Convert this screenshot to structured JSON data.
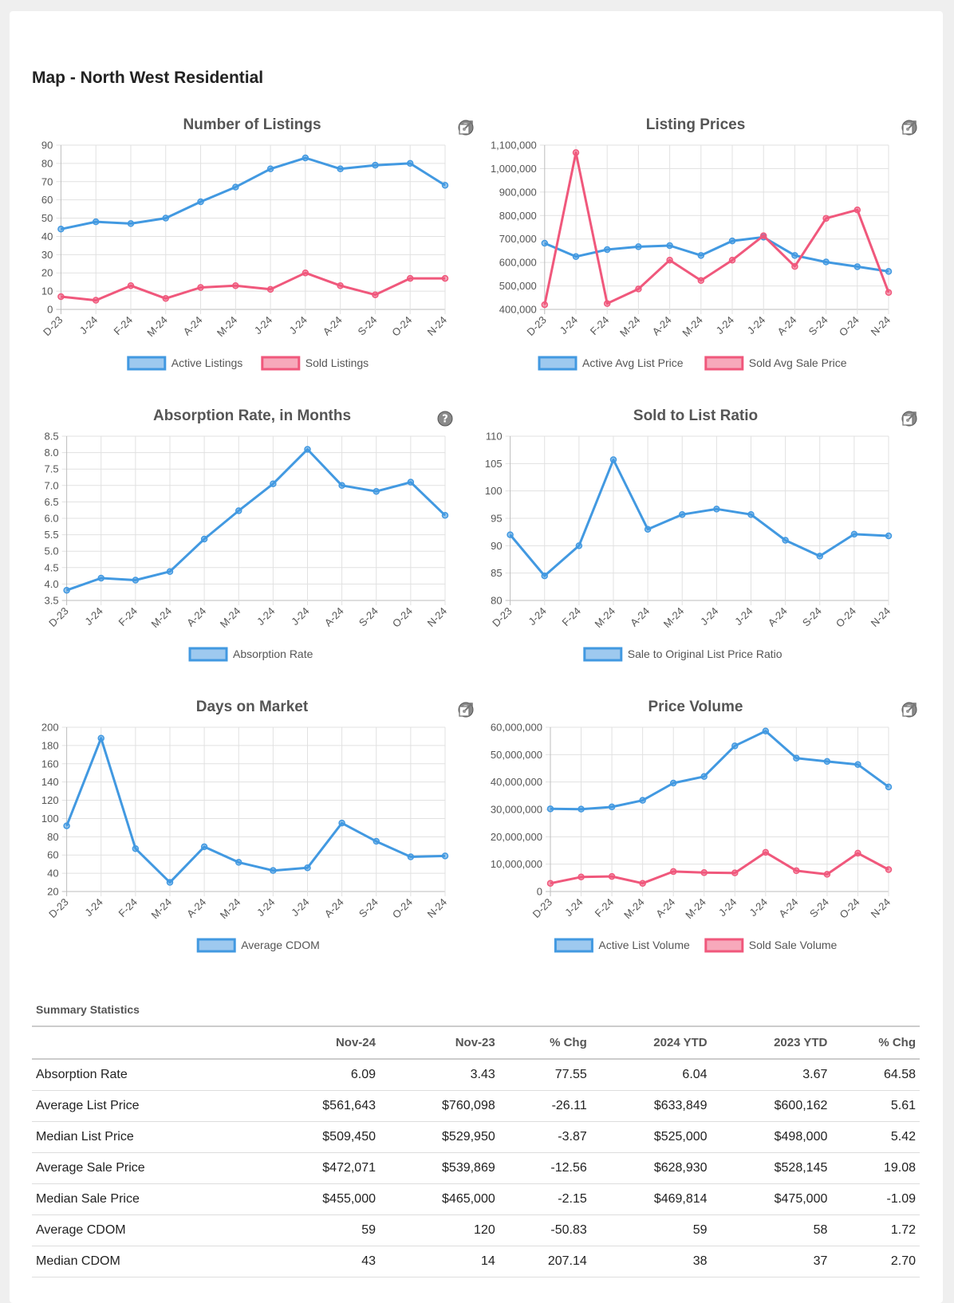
{
  "page": {
    "title": "Map - North West Residential"
  },
  "colors": {
    "blue": "#4299e1",
    "pink": "#f0587c",
    "grid": "#e1e1e1",
    "axis": "#bdbdbd"
  },
  "icons": {
    "help": "help-icon",
    "settings": "settings-icon"
  },
  "chart_data": [
    {
      "type": "line",
      "title": "Number of Listings",
      "categories": [
        "D-23",
        "J-24",
        "F-24",
        "M-24",
        "A-24",
        "M-24",
        "J-24",
        "J-24",
        "A-24",
        "S-24",
        "O-24",
        "N-24"
      ],
      "yticks": [
        "0",
        "10",
        "20",
        "30",
        "40",
        "50",
        "60",
        "70",
        "80",
        "90"
      ],
      "ylim": [
        0,
        90
      ],
      "series": [
        {
          "name": "Active Listings",
          "color": "#4299e1",
          "values": [
            44,
            48,
            47,
            50,
            59,
            67,
            77,
            83,
            77,
            79,
            80,
            68
          ]
        },
        {
          "name": "Sold Listings",
          "color": "#f0587c",
          "values": [
            7,
            5,
            13,
            6,
            12,
            13,
            11,
            20,
            13,
            8,
            17,
            17
          ]
        }
      ]
    },
    {
      "type": "line",
      "title": "Listing Prices",
      "categories": [
        "D-23",
        "J-24",
        "F-24",
        "M-24",
        "A-24",
        "M-24",
        "J-24",
        "J-24",
        "A-24",
        "S-24",
        "O-24",
        "N-24"
      ],
      "yticks": [
        "400,000",
        "500,000",
        "600,000",
        "700,000",
        "800,000",
        "900,000",
        "1,000,000",
        "1,100,000"
      ],
      "ylim": [
        400000,
        1100000
      ],
      "series": [
        {
          "name": "Active Avg List Price",
          "color": "#4299e1",
          "values": [
            682000,
            625000,
            655000,
            667000,
            672000,
            630000,
            692000,
            708000,
            630000,
            602000,
            582000,
            561643
          ]
        },
        {
          "name": "Sold Avg Sale Price",
          "color": "#f0587c",
          "values": [
            420000,
            1068000,
            425000,
            487000,
            610000,
            523000,
            610000,
            714000,
            583000,
            788000,
            824000,
            472071
          ]
        }
      ]
    },
    {
      "type": "line",
      "title": "Absorption Rate, in Months",
      "categories": [
        "D-23",
        "J-24",
        "F-24",
        "M-24",
        "A-24",
        "M-24",
        "J-24",
        "J-24",
        "A-24",
        "S-24",
        "O-24",
        "N-24"
      ],
      "yticks": [
        "3.5",
        "4.0",
        "4.5",
        "5.0",
        "5.5",
        "6.0",
        "6.5",
        "7.0",
        "7.5",
        "8.0",
        "8.5"
      ],
      "ylim": [
        3.5,
        8.5
      ],
      "series": [
        {
          "name": "Absorption Rate",
          "color": "#4299e1",
          "values": [
            3.81,
            4.18,
            4.12,
            4.38,
            5.37,
            6.23,
            7.05,
            8.1,
            7.0,
            6.82,
            7.1,
            6.09
          ]
        }
      ]
    },
    {
      "type": "line",
      "title": "Sold to List Ratio",
      "categories": [
        "D-23",
        "J-24",
        "F-24",
        "M-24",
        "A-24",
        "M-24",
        "J-24",
        "J-24",
        "A-24",
        "S-24",
        "O-24",
        "N-24"
      ],
      "yticks": [
        "80",
        "85",
        "90",
        "95",
        "100",
        "105",
        "110"
      ],
      "ylim": [
        80,
        110
      ],
      "series": [
        {
          "name": "Sale to Original List Price Ratio",
          "color": "#4299e1",
          "values": [
            92.0,
            84.5,
            90.0,
            105.7,
            93.0,
            95.7,
            96.7,
            95.7,
            91.0,
            88.1,
            92.1,
            91.8
          ]
        }
      ]
    },
    {
      "type": "line",
      "title": "Days on Market",
      "categories": [
        "D-23",
        "J-24",
        "F-24",
        "M-24",
        "A-24",
        "M-24",
        "J-24",
        "J-24",
        "A-24",
        "S-24",
        "O-24",
        "N-24"
      ],
      "yticks": [
        "20",
        "40",
        "60",
        "80",
        "100",
        "120",
        "140",
        "160",
        "180",
        "200"
      ],
      "ylim": [
        20,
        200
      ],
      "series": [
        {
          "name": "Average CDOM",
          "color": "#4299e1",
          "values": [
            92,
            188,
            67,
            30,
            69,
            52,
            43,
            46,
            95,
            75,
            58,
            59
          ]
        }
      ]
    },
    {
      "type": "line",
      "title": "Price Volume",
      "categories": [
        "D-23",
        "J-24",
        "F-24",
        "M-24",
        "A-24",
        "M-24",
        "J-24",
        "J-24",
        "A-24",
        "S-24",
        "O-24",
        "N-24"
      ],
      "yticks": [
        "0",
        "10,000,000",
        "20,000,000",
        "30,000,000",
        "40,000,000",
        "50,000,000",
        "60,000,000"
      ],
      "ylim": [
        0,
        60000000
      ],
      "series": [
        {
          "name": "Active List Volume",
          "color": "#4299e1",
          "values": [
            30200000,
            30100000,
            30900000,
            33300000,
            39600000,
            42000000,
            53200000,
            58600000,
            48700000,
            47500000,
            46400000,
            38200000
          ]
        },
        {
          "name": "Sold Sale Volume",
          "color": "#f0587c",
          "values": [
            3000000,
            5300000,
            5500000,
            3000000,
            7300000,
            6900000,
            6800000,
            14300000,
            7600000,
            6300000,
            14000000,
            8000000
          ]
        }
      ]
    }
  ],
  "summary": {
    "title": "Summary Statistics",
    "headers": [
      "",
      "Nov-24",
      "Nov-23",
      "% Chg",
      "2024 YTD",
      "2023 YTD",
      "% Chg"
    ],
    "rows": [
      [
        "Absorption Rate",
        "6.09",
        "3.43",
        "77.55",
        "6.04",
        "3.67",
        "64.58"
      ],
      [
        "Average List Price",
        "$561,643",
        "$760,098",
        "-26.11",
        "$633,849",
        "$600,162",
        "5.61"
      ],
      [
        "Median List Price",
        "$509,450",
        "$529,950",
        "-3.87",
        "$525,000",
        "$498,000",
        "5.42"
      ],
      [
        "Average Sale Price",
        "$472,071",
        "$539,869",
        "-12.56",
        "$628,930",
        "$528,145",
        "19.08"
      ],
      [
        "Median Sale Price",
        "$455,000",
        "$465,000",
        "-2.15",
        "$469,814",
        "$475,000",
        "-1.09"
      ],
      [
        "Average CDOM",
        "59",
        "120",
        "-50.83",
        "59",
        "58",
        "1.72"
      ],
      [
        "Median CDOM",
        "43",
        "14",
        "207.14",
        "38",
        "37",
        "2.70"
      ]
    ]
  }
}
